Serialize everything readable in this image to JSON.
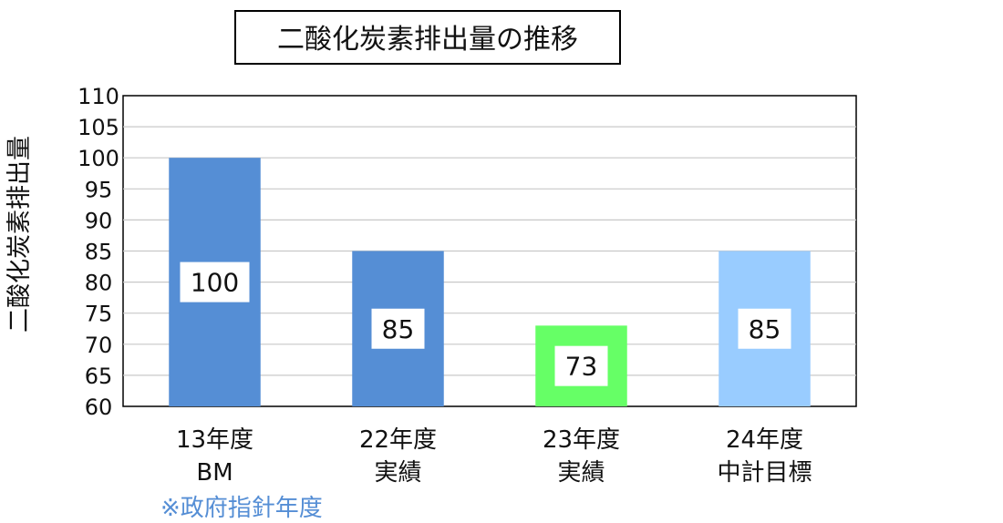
{
  "chart_data": {
    "type": "bar",
    "title": "二酸化炭素排出量の推移",
    "ylabel": "二酸化炭素排出量",
    "xlabel": "",
    "ylim": [
      60,
      110
    ],
    "yticks": [
      60,
      65,
      70,
      75,
      80,
      85,
      90,
      95,
      100,
      105,
      110
    ],
    "grid": true,
    "legend": "none",
    "categories": [
      [
        "13年度",
        "BM"
      ],
      [
        "22年度",
        "実績"
      ],
      [
        "23年度",
        "実績"
      ],
      [
        "24年度",
        "中計目標"
      ]
    ],
    "values": [
      100,
      85,
      73,
      85
    ],
    "data_labels": [
      "100",
      "85",
      "73",
      "85"
    ],
    "colors": [
      "#558ed5",
      "#558ed5",
      "#66ff66",
      "#99ccff"
    ],
    "annotations": [
      {
        "text": "※政府指針年度",
        "color": "#558ed5"
      }
    ]
  }
}
